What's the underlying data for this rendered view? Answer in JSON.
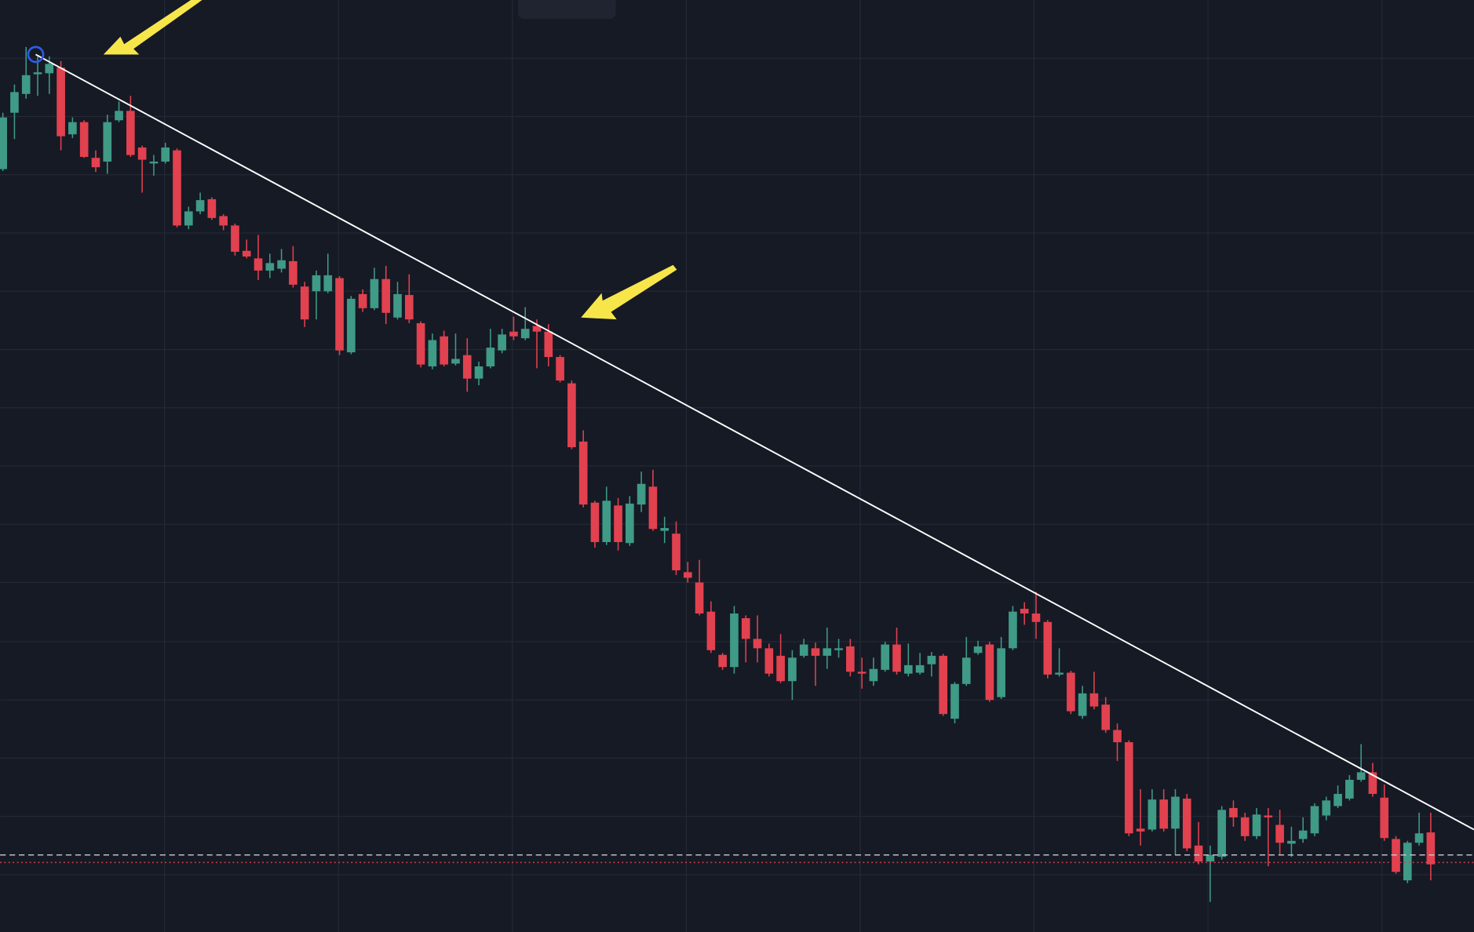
{
  "chart_data": {
    "type": "candlestick",
    "up_color": "#3f9a86",
    "down_color": "#e2414f",
    "grid": true,
    "grid_color": "#242936",
    "background": "#161a25",
    "xlim": [
      -0.24,
      126.72
    ],
    "ylim": [
      8,
      1000
    ],
    "xticks": [
      13.93,
      28.91,
      43.89,
      58.87,
      73.85,
      88.83,
      103.81,
      118.79
    ],
    "yticks": [
      938,
      876,
      814,
      752,
      690,
      628,
      566,
      504,
      442,
      380,
      317,
      255,
      193,
      131,
      69
    ],
    "open": [
      820,
      880,
      900,
      921,
      922,
      928,
      857,
      870,
      832,
      828,
      872,
      882,
      843,
      826,
      828,
      840,
      760,
      775,
      788,
      770,
      760,
      733,
      725,
      712,
      714,
      722,
      695,
      690,
      690,
      704,
      625,
      687,
      672,
      703,
      662,
      686,
      656,
      610,
      642,
      613,
      622,
      597,
      610,
      627,
      647,
      640,
      653,
      647,
      620,
      592,
      530,
      465,
      423,
      462,
      422,
      463,
      482,
      435,
      432,
      391,
      380,
      349,
      303,
      290,
      342,
      320,
      310,
      302,
      275,
      302,
      310,
      302,
      308,
      312,
      285,
      275,
      287,
      314,
      283,
      284,
      293,
      302,
      235,
      272,
      305,
      314,
      258,
      310,
      352,
      347,
      338,
      282,
      284,
      238,
      262,
      250,
      223,
      210,
      118,
      117,
      149,
      118,
      150,
      100,
      83,
      88,
      140,
      130,
      110,
      132,
      122,
      102,
      107,
      113,
      132,
      142,
      150,
      170,
      178,
      151,
      107,
      63,
      103,
      114
    ],
    "high": [
      880,
      910,
      950,
      940,
      940,
      935,
      875,
      872,
      840,
      878,
      892,
      898,
      845,
      835,
      848,
      842,
      780,
      795,
      790,
      772,
      762,
      745,
      750,
      730,
      735,
      738,
      700,
      712,
      730,
      706,
      685,
      692,
      715,
      717,
      700,
      708,
      658,
      645,
      648,
      645,
      640,
      615,
      650,
      650,
      663,
      673,
      660,
      655,
      622,
      595,
      542,
      467,
      482,
      470,
      472,
      498,
      500,
      450,
      445,
      402,
      404,
      360,
      305,
      355,
      345,
      345,
      315,
      325,
      308,
      320,
      316,
      332,
      320,
      320,
      300,
      300,
      317,
      332,
      315,
      305,
      306,
      304,
      274,
      322,
      318,
      317,
      322,
      355,
      359,
      370,
      340,
      310,
      286,
      270,
      285,
      258,
      230,
      212,
      160,
      160,
      160,
      160,
      155,
      125,
      100,
      142,
      148,
      135,
      140,
      140,
      138,
      120,
      130,
      145,
      152,
      164,
      175,
      208,
      188,
      165,
      110,
      105,
      135,
      135
    ],
    "low": [
      818,
      852,
      895,
      898,
      900,
      840,
      853,
      832,
      817,
      815,
      870,
      833,
      795,
      813,
      826,
      758,
      756,
      772,
      766,
      755,
      728,
      725,
      702,
      704,
      710,
      694,
      652,
      660,
      688,
      622,
      623,
      668,
      670,
      655,
      660,
      656,
      609,
      607,
      610,
      611,
      583,
      590,
      608,
      624,
      638,
      638,
      608,
      610,
      593,
      522,
      460,
      417,
      420,
      414,
      419,
      455,
      435,
      422,
      388,
      380,
      345,
      305,
      287,
      283,
      295,
      295,
      280,
      273,
      255,
      300,
      270,
      288,
      300,
      280,
      267,
      270,
      285,
      282,
      280,
      282,
      280,
      238,
      230,
      270,
      303,
      253,
      256,
      308,
      335,
      320,
      278,
      280,
      240,
      235,
      245,
      220,
      190,
      110,
      100,
      115,
      115,
      90,
      94,
      80,
      40,
      85,
      120,
      105,
      107,
      78,
      90,
      88,
      103,
      110,
      127,
      140,
      148,
      168,
      152,
      105,
      70,
      60,
      100,
      63
    ],
    "close": [
      875,
      902,
      920,
      923,
      932,
      855,
      870,
      833,
      822,
      870,
      882,
      835,
      830,
      828,
      843,
      760,
      775,
      787,
      768,
      760,
      732,
      727,
      712,
      720,
      723,
      697,
      660,
      707,
      707,
      627,
      682,
      672,
      703,
      667,
      687,
      660,
      612,
      638,
      612,
      618,
      597,
      610,
      630,
      644,
      642,
      650,
      647,
      620,
      595,
      524,
      463,
      423,
      467,
      423,
      464,
      485,
      437,
      438,
      393,
      385,
      347,
      308,
      290,
      347,
      320,
      310,
      283,
      275,
      300,
      314,
      302,
      310,
      310,
      285,
      283,
      288,
      314,
      285,
      292,
      292,
      302,
      240,
      272,
      300,
      312,
      255,
      310,
      349,
      347,
      338,
      282,
      284,
      243,
      262,
      248,
      223,
      210,
      113,
      115,
      149,
      118,
      152,
      97,
      83,
      90,
      138,
      130,
      110,
      133,
      130,
      103,
      105,
      116,
      142,
      148,
      155,
      170,
      178,
      155,
      108,
      72,
      103,
      113,
      80
    ],
    "trendline": {
      "color": "#ffffff",
      "x": [
        2.83,
        126.72
      ],
      "y": [
        942,
        117
      ]
    },
    "hlines": [
      {
        "value": 90,
        "color": "#c9ccd3",
        "style": "dashed"
      },
      {
        "value": 82,
        "color": "#e2414f",
        "style": "dotted"
      }
    ]
  }
}
